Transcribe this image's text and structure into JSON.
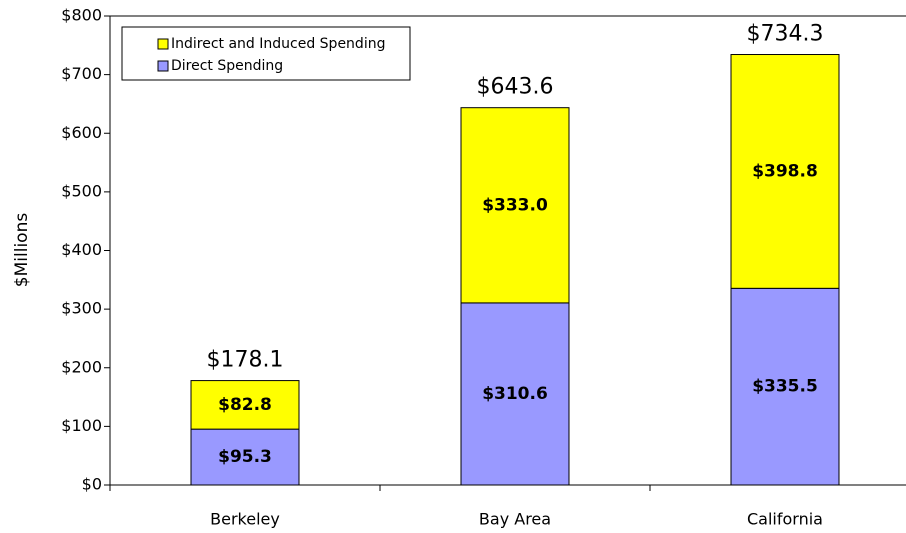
{
  "chart_data": {
    "type": "stacked_bar",
    "categories": [
      "Berkeley",
      "Bay Area",
      "California"
    ],
    "series": [
      {
        "name": "Direct Spending",
        "color": "#9999ff",
        "values": [
          95.3,
          310.6,
          335.5
        ],
        "value_labels": [
          "$95.3",
          "$310.6",
          "$335.5"
        ]
      },
      {
        "name": "Indirect and Induced Spending",
        "color": "#ffff00",
        "values": [
          82.8,
          333.0,
          398.8
        ],
        "value_labels": [
          "$82.8",
          "$333.0",
          "$398.8"
        ]
      }
    ],
    "totals": {
      "values": [
        178.1,
        643.6,
        734.3
      ],
      "value_labels": [
        "$178.1",
        "$643.6",
        "$734.3"
      ]
    },
    "ylabel": "$Millions",
    "ylim": [
      0,
      800
    ],
    "yticks": [
      {
        "value": 0,
        "label": "$0"
      },
      {
        "value": 100,
        "label": "$100"
      },
      {
        "value": 200,
        "label": "$200"
      },
      {
        "value": 300,
        "label": "$300"
      },
      {
        "value": 400,
        "label": "$400"
      },
      {
        "value": 500,
        "label": "$500"
      },
      {
        "value": 600,
        "label": "$600"
      },
      {
        "value": 700,
        "label": "$700"
      },
      {
        "value": 800,
        "label": "$800"
      }
    ],
    "legend": "upper left"
  }
}
